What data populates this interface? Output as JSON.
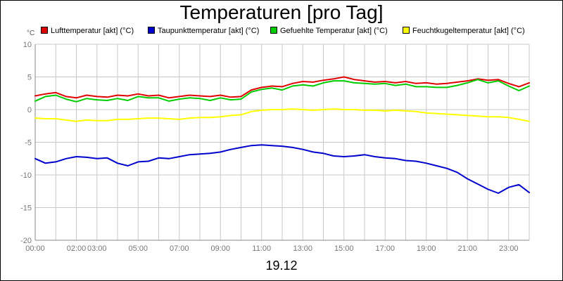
{
  "chart_data": {
    "type": "line",
    "title": "Temperaturen [pro Tag]",
    "xlabel": "19.12",
    "ylabel_unit": "°C",
    "xlim": [
      0,
      24
    ],
    "ylim": [
      -20,
      10
    ],
    "x_ticks": [
      {
        "value": 0,
        "label": "00:00"
      },
      {
        "value": 2,
        "label": "02:00"
      },
      {
        "value": 3,
        "label": "03:00"
      },
      {
        "value": 5,
        "label": "05:00"
      },
      {
        "value": 7,
        "label": "07:00"
      },
      {
        "value": 9,
        "label": "09:00"
      },
      {
        "value": 11,
        "label": "11:00"
      },
      {
        "value": 13,
        "label": "13:00"
      },
      {
        "value": 15,
        "label": "15:00"
      },
      {
        "value": 17,
        "label": "17:00"
      },
      {
        "value": 19,
        "label": "19:00"
      },
      {
        "value": 21,
        "label": "21:00"
      },
      {
        "value": 23,
        "label": "23:00"
      }
    ],
    "y_ticks": [
      {
        "value": 10,
        "label": "10"
      },
      {
        "value": 5,
        "label": "5"
      },
      {
        "value": 0,
        "label": "0"
      },
      {
        "value": -5,
        "label": "-5"
      },
      {
        "value": -10,
        "label": "-10"
      },
      {
        "value": -15,
        "label": "-15"
      },
      {
        "value": -20,
        "label": "-20"
      }
    ],
    "grid": true,
    "legend_position": "top",
    "x": [
      0,
      0.5,
      1,
      1.5,
      2,
      2.5,
      3,
      3.5,
      4,
      4.5,
      5,
      5.5,
      6,
      6.5,
      7,
      7.5,
      8,
      8.5,
      9,
      9.5,
      10,
      10.5,
      11,
      11.5,
      12,
      12.5,
      13,
      13.5,
      14,
      14.5,
      15,
      15.5,
      16,
      16.5,
      17,
      17.5,
      18,
      18.5,
      19,
      19.5,
      20,
      20.5,
      21,
      21.5,
      22,
      22.5,
      23,
      23.5,
      24
    ],
    "series": [
      {
        "name": "Lufttemperatur [akt] (°C)",
        "color": "#e00000",
        "values": [
          2.1,
          2.4,
          2.6,
          2.0,
          1.8,
          2.2,
          2.0,
          1.9,
          2.2,
          2.1,
          2.4,
          2.1,
          2.2,
          1.8,
          2.0,
          2.2,
          2.1,
          2.0,
          2.2,
          1.9,
          2.0,
          3.0,
          3.4,
          3.6,
          3.5,
          4.0,
          4.3,
          4.2,
          4.5,
          4.7,
          5.0,
          4.6,
          4.4,
          4.2,
          4.3,
          4.1,
          4.3,
          4.0,
          4.1,
          3.9,
          4.0,
          4.2,
          4.4,
          4.7,
          4.5,
          4.6,
          4.0,
          3.5,
          4.1
        ]
      },
      {
        "name": "Taupunkttemperatur [akt] (°C)",
        "color": "#0000cc",
        "values": [
          -7.5,
          -8.2,
          -8.0,
          -7.5,
          -7.2,
          -7.3,
          -7.5,
          -7.4,
          -8.2,
          -8.6,
          -8.0,
          -7.9,
          -7.4,
          -7.5,
          -7.2,
          -6.9,
          -6.8,
          -6.7,
          -6.5,
          -6.1,
          -5.8,
          -5.5,
          -5.4,
          -5.5,
          -5.6,
          -5.8,
          -6.1,
          -6.5,
          -6.7,
          -7.1,
          -7.2,
          -7.1,
          -6.9,
          -7.2,
          -7.4,
          -7.5,
          -7.8,
          -7.9,
          -8.2,
          -8.6,
          -9.0,
          -9.6,
          -10.6,
          -11.4,
          -12.2,
          -12.8,
          -11.9,
          -11.5,
          -12.7
        ]
      },
      {
        "name": "Gefuehlte Temperatur [akt] (°C)",
        "color": "#00cc00",
        "values": [
          1.3,
          2.0,
          2.2,
          1.6,
          1.2,
          1.7,
          1.5,
          1.4,
          1.7,
          1.4,
          2.0,
          1.8,
          1.8,
          1.3,
          1.6,
          1.8,
          1.7,
          1.4,
          1.8,
          1.5,
          1.6,
          2.7,
          3.1,
          3.3,
          3.0,
          3.6,
          3.8,
          3.6,
          4.1,
          4.4,
          4.4,
          4.1,
          4.0,
          3.9,
          4.0,
          3.7,
          3.9,
          3.5,
          3.5,
          3.4,
          3.4,
          3.7,
          4.1,
          4.6,
          4.1,
          4.4,
          3.6,
          2.9,
          3.6
        ]
      },
      {
        "name": "Feuchtkugeltemperatur [akt] (°C)",
        "color": "#ffff00",
        "values": [
          -1.3,
          -1.4,
          -1.4,
          -1.6,
          -1.8,
          -1.6,
          -1.7,
          -1.7,
          -1.5,
          -1.5,
          -1.4,
          -1.3,
          -1.3,
          -1.4,
          -1.5,
          -1.3,
          -1.2,
          -1.2,
          -1.1,
          -0.9,
          -0.8,
          -0.3,
          -0.1,
          0.0,
          0.0,
          0.1,
          0.0,
          -0.1,
          0.0,
          0.1,
          0.0,
          0.0,
          -0.1,
          -0.1,
          -0.2,
          -0.1,
          -0.2,
          -0.3,
          -0.5,
          -0.6,
          -0.7,
          -0.8,
          -0.9,
          -1.0,
          -1.1,
          -1.1,
          -1.2,
          -1.5,
          -1.8
        ]
      }
    ]
  }
}
